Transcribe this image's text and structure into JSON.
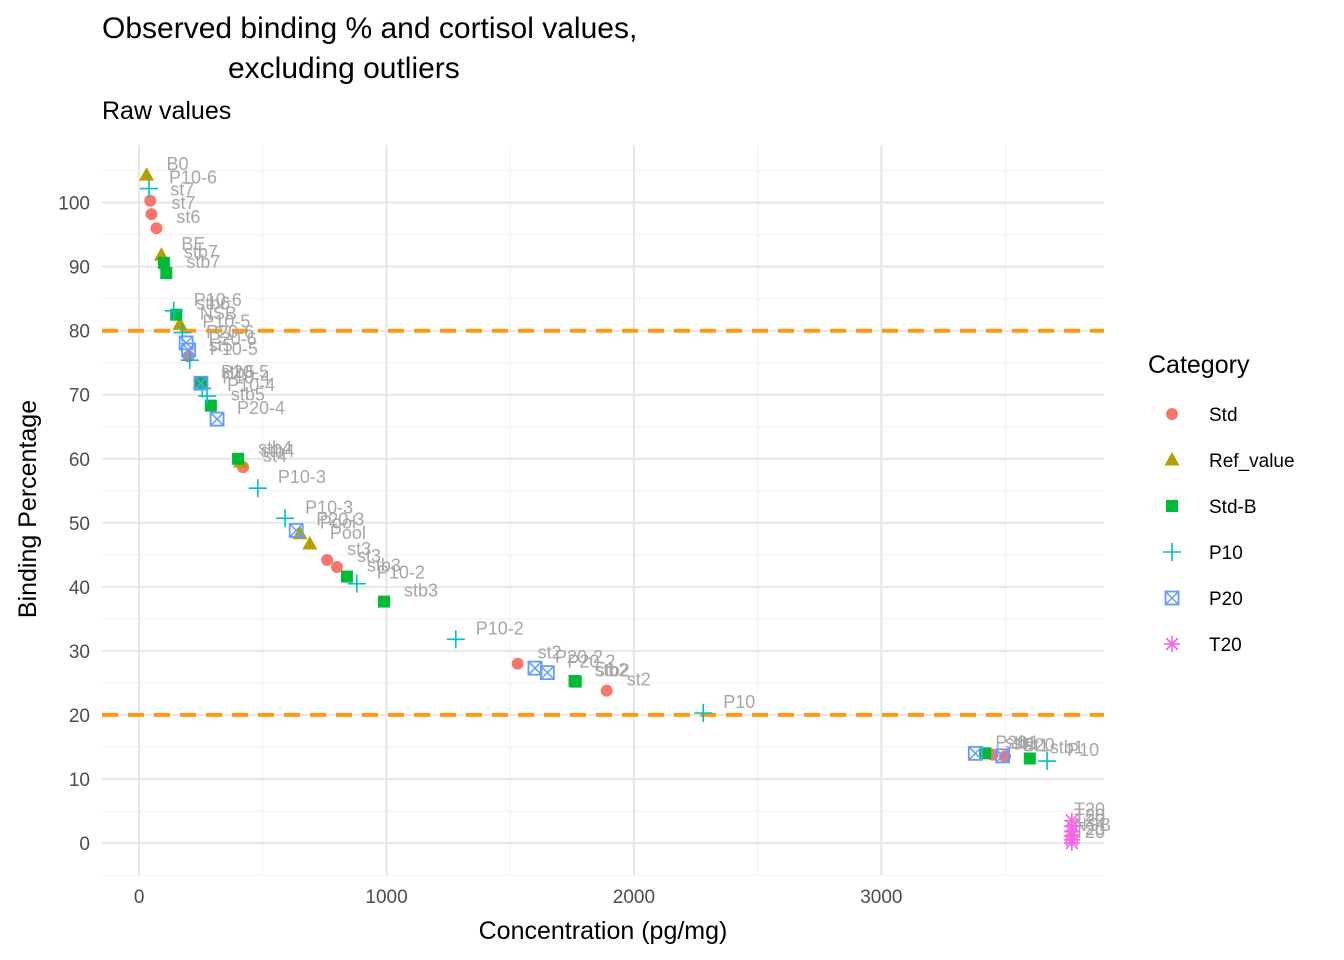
{
  "chart_data": {
    "type": "scatter",
    "title_line1": "Observed binding % and cortisol values,",
    "title_line2": "excluding outliers",
    "subtitle": "Raw values",
    "xlabel": "Concentration (pg/mg)",
    "ylabel": "Binding Percentage",
    "xlim": [
      -150,
      3900
    ],
    "ylim": [
      -5,
      109
    ],
    "x_ticks": [
      0,
      1000,
      2000,
      3000
    ],
    "x_tick_labels": [
      "0",
      "1000",
      "2000",
      "3000"
    ],
    "y_ticks": [
      0,
      10,
      20,
      30,
      40,
      50,
      60,
      70,
      80,
      90,
      100
    ],
    "y_tick_labels": [
      "0",
      "10",
      "20",
      "30",
      "40",
      "50",
      "60",
      "70",
      "80",
      "90",
      "100"
    ],
    "reference_lines": [
      {
        "y": 80,
        "color": "#FF9912",
        "style": "dashed"
      },
      {
        "y": 20,
        "color": "#FF9912",
        "style": "dashed"
      }
    ],
    "grid": true,
    "legend": {
      "title": "Category",
      "position": "right",
      "entries": [
        {
          "name": "Std",
          "shape": "circle",
          "color": "#F8766D"
        },
        {
          "name": "Ref_value",
          "shape": "triangle",
          "color": "#B79F00"
        },
        {
          "name": "Std-B",
          "shape": "square",
          "color": "#00BA38"
        },
        {
          "name": "P10",
          "shape": "plus",
          "color": "#00BFC4"
        },
        {
          "name": "P20",
          "shape": "boxx",
          "color": "#619CFF"
        },
        {
          "name": "T20",
          "shape": "asterisk",
          "color": "#F564E3"
        }
      ]
    },
    "series": [
      {
        "name": "Std",
        "points": [
          {
            "x": 45,
            "y": 100.3,
            "label": "st7"
          },
          {
            "x": 50,
            "y": 98.2,
            "label": "st7"
          },
          {
            "x": 70,
            "y": 96.0,
            "label": "st6"
          },
          {
            "x": 200,
            "y": 76.0,
            "label": "st5"
          },
          {
            "x": 420,
            "y": 58.7,
            "label": "st4"
          },
          {
            "x": 760,
            "y": 44.2,
            "label": "st3"
          },
          {
            "x": 800,
            "y": 43.1,
            "label": "st3"
          },
          {
            "x": 1530,
            "y": 28.0,
            "label": "st2"
          },
          {
            "x": 1890,
            "y": 23.8,
            "label": "st2"
          },
          {
            "x": 3450,
            "y": 13.8,
            "label": "st1"
          },
          {
            "x": 3500,
            "y": 13.5,
            "label": "st1"
          }
        ]
      },
      {
        "name": "Ref_value",
        "points": [
          {
            "x": 30,
            "y": 104.3,
            "label": "B0"
          },
          {
            "x": 90,
            "y": 91.8,
            "label": "BE"
          },
          {
            "x": 165,
            "y": 81.0,
            "label": "NSB"
          },
          {
            "x": 410,
            "y": 59.5,
            "label": "stb4"
          },
          {
            "x": 650,
            "y": 48.3,
            "label": "Pool"
          },
          {
            "x": 690,
            "y": 46.7,
            "label": "Pool"
          }
        ]
      },
      {
        "name": "Std-B",
        "points": [
          {
            "x": 100,
            "y": 90.6,
            "label": "stb7"
          },
          {
            "x": 110,
            "y": 89.0,
            "label": "stb7"
          },
          {
            "x": 150,
            "y": 82.5,
            "label": "stb6"
          },
          {
            "x": 250,
            "y": 71.8,
            "label": "stb5"
          },
          {
            "x": 290,
            "y": 68.3,
            "label": "stb5"
          },
          {
            "x": 400,
            "y": 60.0,
            "label": "stb4"
          },
          {
            "x": 840,
            "y": 41.6,
            "label": "stb3"
          },
          {
            "x": 990,
            "y": 37.7,
            "label": "stb3"
          },
          {
            "x": 1760,
            "y": 25.3,
            "label": "stb2"
          },
          {
            "x": 1765,
            "y": 25.2,
            "label": "stb2"
          },
          {
            "x": 3420,
            "y": 14.0,
            "label": "stb1"
          },
          {
            "x": 3600,
            "y": 13.2,
            "label": "stb1"
          }
        ]
      },
      {
        "name": "P10",
        "points": [
          {
            "x": 40,
            "y": 102.2,
            "label": "P10-6"
          },
          {
            "x": 140,
            "y": 83.1,
            "label": "P10-6"
          },
          {
            "x": 175,
            "y": 79.7,
            "label": "P10-5"
          },
          {
            "x": 205,
            "y": 75.4,
            "label": "P10-5"
          },
          {
            "x": 255,
            "y": 71.0,
            "label": "P10-4"
          },
          {
            "x": 275,
            "y": 69.8,
            "label": "P10-4"
          },
          {
            "x": 480,
            "y": 55.4,
            "label": "P10-3"
          },
          {
            "x": 590,
            "y": 50.7,
            "label": "P10-3"
          },
          {
            "x": 880,
            "y": 40.5,
            "label": "P10-2"
          },
          {
            "x": 1280,
            "y": 31.8,
            "label": "P10-2"
          },
          {
            "x": 2280,
            "y": 20.3,
            "label": "P10"
          },
          {
            "x": 3670,
            "y": 12.8,
            "label": "P10"
          }
        ]
      },
      {
        "name": "P20",
        "points": [
          {
            "x": 190,
            "y": 78.1,
            "label": "P20-6"
          },
          {
            "x": 200,
            "y": 77.0,
            "label": "P20-6"
          },
          {
            "x": 250,
            "y": 71.8,
            "label": "P20-5"
          },
          {
            "x": 315,
            "y": 66.2,
            "label": "P20-4"
          },
          {
            "x": 635,
            "y": 48.8,
            "label": "P20-3"
          },
          {
            "x": 1600,
            "y": 27.3,
            "label": "P20-2"
          },
          {
            "x": 1650,
            "y": 26.6,
            "label": "P20-2"
          },
          {
            "x": 3380,
            "y": 14.0,
            "label": "P20"
          },
          {
            "x": 3490,
            "y": 13.6,
            "label": "P20"
          }
        ]
      },
      {
        "name": "T20",
        "points": [
          {
            "x": 3770,
            "y": 3.5,
            "label": "T20"
          },
          {
            "x": 3770,
            "y": 2.6,
            "label": "T20"
          },
          {
            "x": 3770,
            "y": 1.8,
            "label": "T20"
          },
          {
            "x": 3770,
            "y": 1.1,
            "label": "NSB"
          },
          {
            "x": 3770,
            "y": 0.5,
            "label": "T20"
          },
          {
            "x": 3770,
            "y": 0.0,
            "label": "T20"
          }
        ]
      }
    ]
  }
}
